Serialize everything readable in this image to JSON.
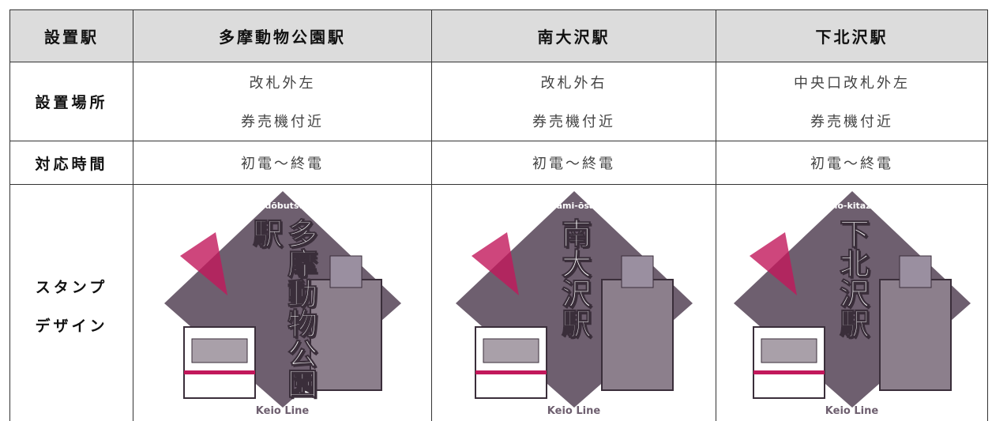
{
  "table": {
    "header": [
      "設置駅",
      "多摩動物公園駅",
      "南大沢駅",
      "下北沢駅"
    ],
    "rows": [
      {
        "label": [
          "設置場所"
        ],
        "cells": [
          [
            "改札外左",
            "券売機付近"
          ],
          [
            "改札外右",
            "券売機付近"
          ],
          [
            "中央口改札外左",
            "券売機付近"
          ]
        ]
      },
      {
        "label": [
          "対応時間"
        ],
        "cells": [
          [
            "初電～終電"
          ],
          [
            "初電～終電"
          ],
          [
            "初電～終電"
          ]
        ]
      },
      {
        "label": [
          "スタンプ",
          "デザイン"
        ],
        "stamps": [
          {
            "romaji": "Tama-dōbutsukōen",
            "name": "多摩動物公園駅",
            "line": "Keio Line"
          },
          {
            "romaji": "Minami-ōsawa",
            "name": "南大沢駅",
            "line": "Keio Line"
          },
          {
            "romaji": "Shimo-kitazawa",
            "name": "下北沢駅",
            "line": "Keio Line"
          }
        ]
      }
    ]
  }
}
